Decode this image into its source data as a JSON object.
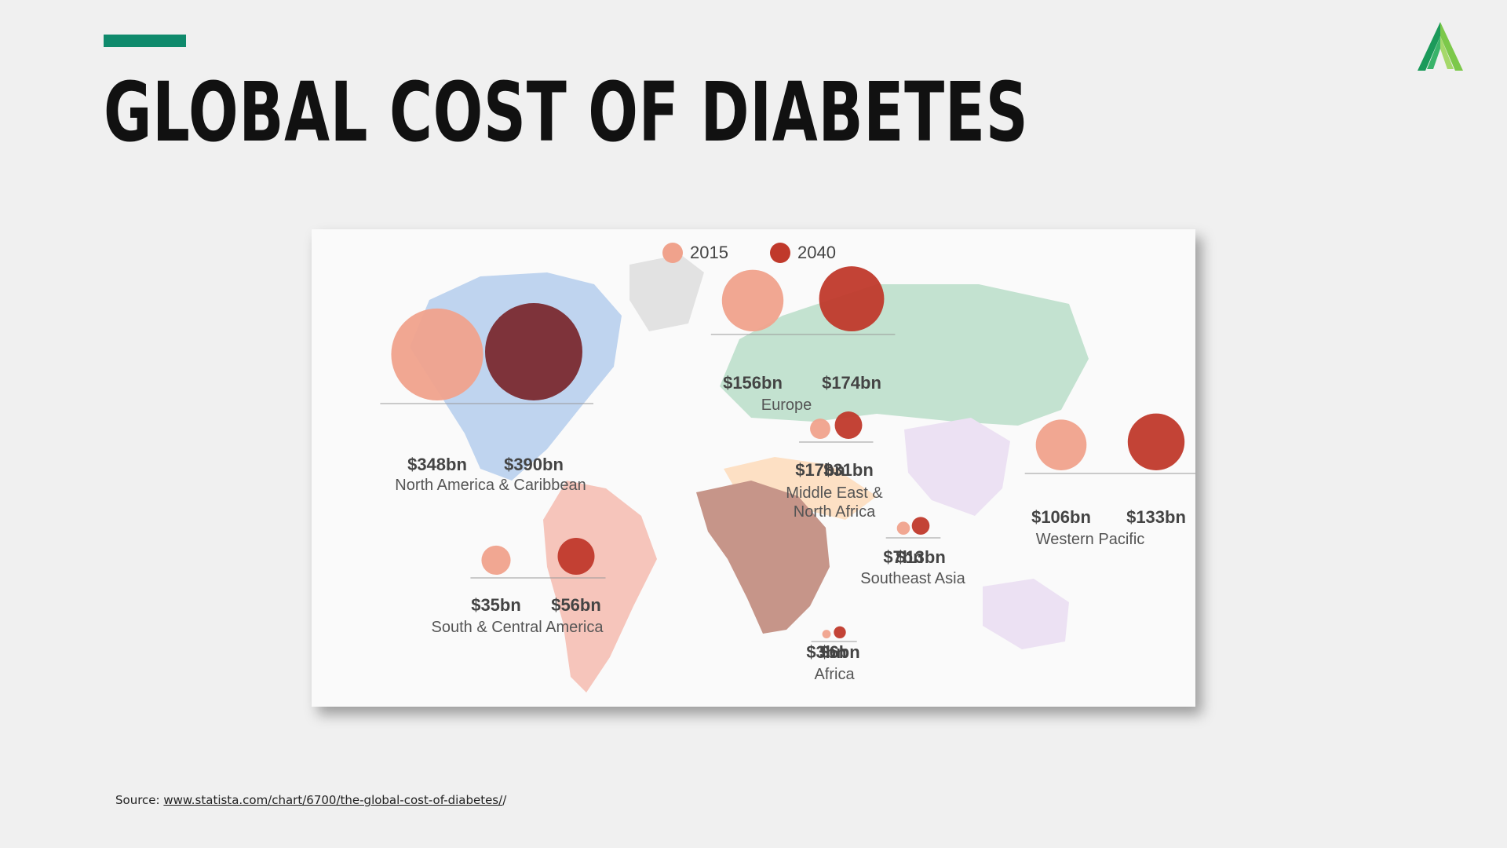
{
  "slide": {
    "title": "GLOBAL COST OF DIABETES",
    "accent_color": "#0f8a6c",
    "logo_icon": "stylized-a-leaf-logo",
    "source_label": "Source:",
    "source_url": "www.statista.com/chart/6700/the-global-cost-of-diabetes/",
    "source_suffix": "/"
  },
  "chart_data": {
    "type": "bubble-map",
    "title": "",
    "legend": [
      {
        "name": "2015",
        "color": "#f0a28c"
      },
      {
        "name": "2040",
        "color": "#c0392b"
      }
    ],
    "unit": "bn USD",
    "regions": [
      {
        "name": "North America & Caribbean",
        "values": {
          "2015": 348,
          "2040": 390
        },
        "labels": [
          "$348bn",
          "$390bn"
        ]
      },
      {
        "name": "Europe",
        "values": {
          "2015": 156,
          "2040": 174
        },
        "labels": [
          "$156bn",
          "$174bn"
        ]
      },
      {
        "name": "Middle East & North Africa",
        "values": {
          "2015": 17,
          "2040": 31
        },
        "labels": [
          "$17bn",
          "$31bn"
        ]
      },
      {
        "name": "Western Pacific",
        "values": {
          "2015": 106,
          "2040": 133
        },
        "labels": [
          "$106bn",
          "$133bn"
        ]
      },
      {
        "name": "Southeast Asia",
        "values": {
          "2015": 7,
          "2040": 13
        },
        "labels": [
          "$7bn",
          "$13bn"
        ]
      },
      {
        "name": "South & Central America",
        "values": {
          "2015": 35,
          "2040": 56
        },
        "labels": [
          "$35bn",
          "$56bn"
        ]
      },
      {
        "name": "Africa",
        "values": {
          "2015": 3,
          "2040": 6
        },
        "labels": [
          "$3bn",
          "$6bn"
        ]
      }
    ]
  }
}
